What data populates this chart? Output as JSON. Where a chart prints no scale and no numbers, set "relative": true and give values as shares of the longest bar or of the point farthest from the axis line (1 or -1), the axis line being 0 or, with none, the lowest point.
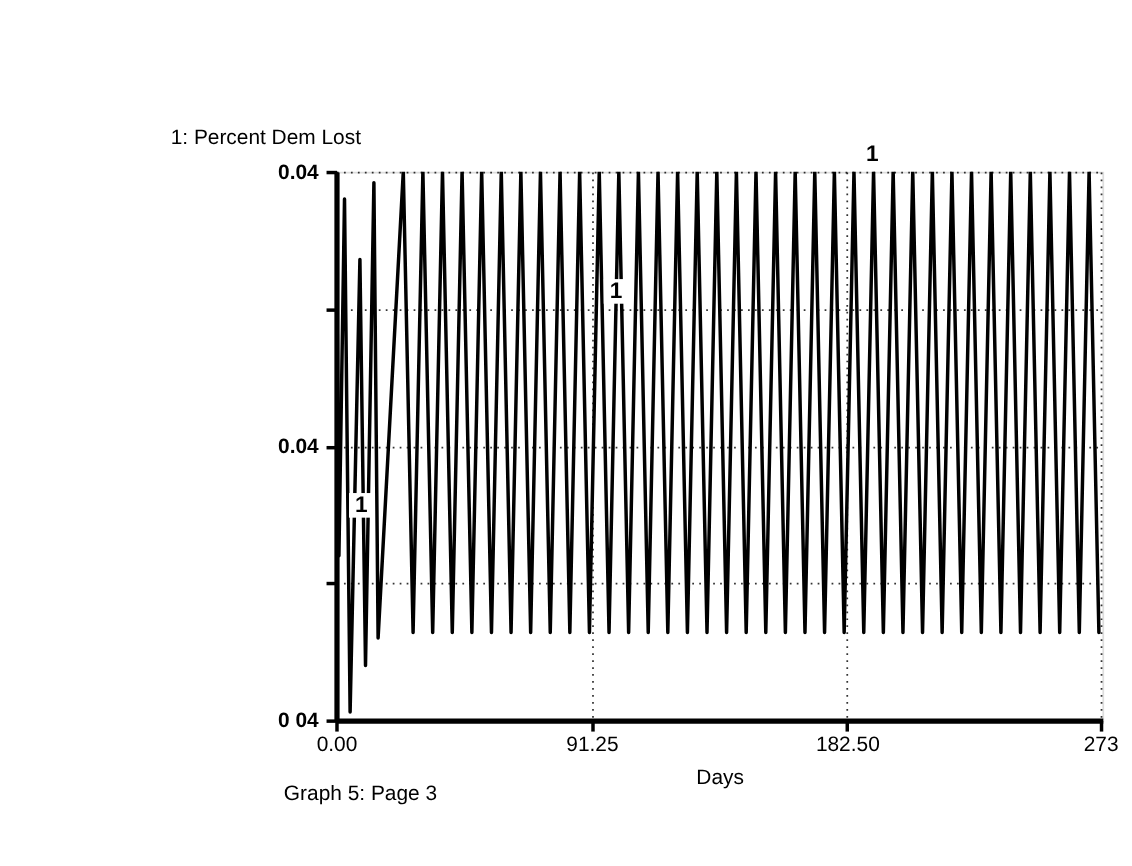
{
  "chart_data": {
    "type": "line",
    "xlabel": "Days",
    "x": [
      0,
      1,
      3,
      5,
      8.5,
      10.5,
      13.5,
      15,
      24,
      27.5,
      31,
      34.5,
      38,
      41.5,
      45,
      48.5,
      52,
      55.5,
      59,
      62.5,
      66,
      69.5,
      73,
      76.5,
      80,
      83.5,
      87,
      90.5,
      94,
      97.5,
      101,
      104.5,
      108,
      111.5,
      115,
      118.5,
      122,
      125.5,
      129,
      132.5,
      136,
      139.5,
      143,
      146.5,
      150,
      153.5,
      157,
      160.5,
      164,
      167.5,
      171,
      174.5,
      178,
      181.5,
      185,
      188.5,
      192,
      195.5,
      199,
      202.5,
      206,
      209.5,
      213,
      216.5,
      220,
      223.5,
      227,
      230.5,
      234,
      237.5,
      241,
      244.5,
      248,
      251.5,
      255,
      258.5,
      262,
      265.5,
      269,
      272.5
    ],
    "series": [
      {
        "name": "1: Percent Dem Lost",
        "color": "#000000",
        "values": [
          1,
          0.3,
          0.95,
          0.015,
          0.84,
          0.1,
          0.98,
          0.15,
          1,
          0.16,
          1,
          0.16,
          1,
          0.16,
          1,
          0.16,
          1,
          0.16,
          1,
          0.16,
          1,
          0.16,
          1,
          0.16,
          1,
          0.16,
          1,
          0.16,
          1,
          0.16,
          1,
          0.16,
          1,
          0.16,
          1,
          0.16,
          1,
          0.16,
          1,
          0.16,
          1,
          0.16,
          1,
          0.16,
          1,
          0.16,
          1,
          0.16,
          1,
          0.16,
          1,
          0.16,
          1,
          0.16,
          1,
          0.16,
          1,
          0.16,
          1,
          0.16,
          1,
          0.16,
          1,
          0.16,
          1,
          0.16,
          1,
          0.16,
          1,
          0.16,
          1,
          0.16,
          1,
          0.16,
          1,
          0.16,
          1,
          0.16,
          1,
          0.16
        ]
      }
    ],
    "xlim": [
      0,
      273.75
    ],
    "xticks": [
      {
        "value": 0,
        "label": "0.00"
      },
      91.25,
      {
        "value": 182.5,
        "label": "182.50"
      },
      273
    ],
    "relative": true,
    "grid": true,
    "legend": "top left",
    "line_style": "solid",
    "marker": "none",
    "annotations": [
      {
        "text": "1",
        "x": 9,
        "y": 0.36
      },
      {
        "text": "1",
        "x": 100,
        "y": 0.75
      },
      {
        "text": "1",
        "x": 191.5,
        "y": 1
      },
      "0.04",
      "0.04",
      "0 04",
      "Graph 5: Page 3"
    ]
  }
}
